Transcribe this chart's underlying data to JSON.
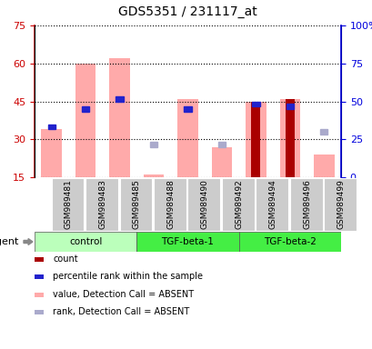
{
  "title": "GDS5351 / 231117_at",
  "samples": [
    "GSM989481",
    "GSM989483",
    "GSM989485",
    "GSM989488",
    "GSM989490",
    "GSM989492",
    "GSM989494",
    "GSM989496",
    "GSM989499"
  ],
  "ylim_left": [
    15,
    75
  ],
  "ylim_right": [
    0,
    100
  ],
  "yticks_left": [
    15,
    30,
    45,
    60,
    75
  ],
  "yticks_right": [
    0,
    25,
    50,
    75,
    100
  ],
  "left_tick_color": "#cc0000",
  "right_tick_color": "#0000dd",
  "pink_bar_bottom": 15,
  "pink_bar_top": [
    34,
    60,
    62,
    16,
    46,
    27,
    45,
    46,
    24
  ],
  "count_bar_top": [
    0,
    0,
    0,
    0,
    0,
    0,
    45,
    46,
    0
  ],
  "blue_sq_y": [
    35,
    42,
    46,
    0,
    42,
    0,
    44,
    43,
    0
  ],
  "light_blue_sq_y": [
    0,
    0,
    0,
    28,
    0,
    28,
    0,
    0,
    33
  ],
  "pink_color": "#ffaaaa",
  "dark_red_color": "#aa0000",
  "blue_color": "#2222cc",
  "light_blue_color": "#aaaacc",
  "groups": [
    {
      "label": "control",
      "start": 0,
      "end": 2,
      "color": "#bbffbb"
    },
    {
      "label": "TGF-beta-1",
      "start": 3,
      "end": 5,
      "color": "#44ee44"
    },
    {
      "label": "TGF-beta-2",
      "start": 6,
      "end": 8,
      "color": "#44ee44"
    }
  ],
  "legend_items": [
    {
      "color": "#aa0000",
      "label": "count"
    },
    {
      "color": "#2222cc",
      "label": "percentile rank within the sample"
    },
    {
      "color": "#ffaaaa",
      "label": "value, Detection Call = ABSENT"
    },
    {
      "color": "#aaaacc",
      "label": "rank, Detection Call = ABSENT"
    }
  ]
}
